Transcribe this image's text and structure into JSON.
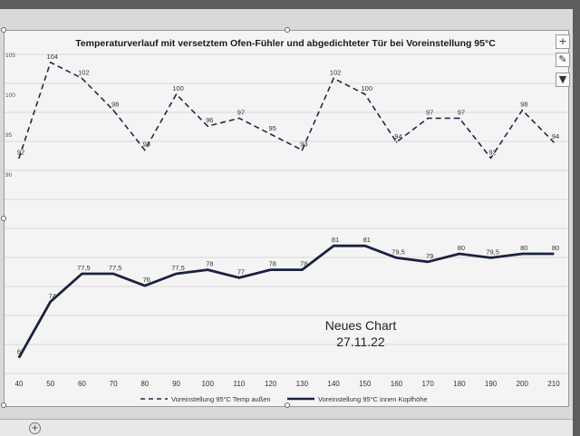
{
  "chart_data": {
    "type": "line",
    "title": "Temperaturverlauf mit versetztem Ofen-Fühler und abgedichteter Tür bei Voreinstellung 95°C",
    "x": [
      40,
      50,
      60,
      70,
      80,
      90,
      100,
      110,
      120,
      130,
      140,
      150,
      160,
      170,
      180,
      190,
      200,
      210
    ],
    "xlim": [
      40,
      210
    ],
    "ylim": [
      65,
      105
    ],
    "y_tick_labels": [
      "105",
      "100",
      "95",
      "90"
    ],
    "x_tick_labels": [
      "40",
      "50",
      "60",
      "70",
      "80",
      "90",
      "100",
      "110",
      "120",
      "130",
      "140",
      "150",
      "160",
      "170",
      "180",
      "190",
      "200",
      "210"
    ],
    "grid": true,
    "legend_position": "bottom",
    "series": [
      {
        "name": "Voreinstellung 95°C Temp außen",
        "color": "#1f2a4a",
        "style": "dashed",
        "x": [
          40,
          50,
          60,
          70,
          80,
          90,
          100,
          110,
          120,
          130,
          140,
          150,
          160,
          170,
          180,
          190,
          200,
          210
        ],
        "values": [
          92,
          104,
          102,
          98,
          93,
          100,
          96,
          97,
          95,
          93,
          102,
          100,
          94,
          97,
          97,
          92,
          98,
          94
        ],
        "labels": [
          "92",
          "104",
          "102",
          "98",
          "93",
          "100",
          "96",
          "97",
          "95",
          "93",
          "102",
          "100",
          "94",
          "97",
          "97",
          "92",
          "98",
          "94"
        ],
        "label_shown": [
          true,
          true,
          true,
          true,
          true,
          true,
          true,
          true,
          true,
          true,
          true,
          true,
          true,
          true,
          true,
          true,
          true,
          true
        ]
      },
      {
        "name": "Voreinstellung 95°C innen Kopfhöhe",
        "color": "#1a2240",
        "style": "solid",
        "x": [
          40,
          50,
          60,
          70,
          80,
          90,
          100,
          110,
          120,
          130,
          140,
          150,
          160,
          170,
          180,
          190,
          200,
          210
        ],
        "values": [
          67,
          74,
          77.5,
          77.5,
          76,
          77.5,
          78,
          77,
          78,
          78,
          81,
          81,
          79.5,
          79,
          80,
          79.5,
          80,
          80
        ],
        "labels": [
          "67",
          "74",
          "77,5",
          "77,5",
          "76",
          "77,5",
          "78",
          "77",
          "78",
          "78",
          "81",
          "81",
          "79,5",
          "79",
          "80",
          "79,5",
          "80",
          "80"
        ],
        "label_shown": [
          true,
          true,
          true,
          true,
          true,
          true,
          true,
          true,
          true,
          true,
          true,
          true,
          true,
          true,
          true,
          true,
          true,
          true
        ]
      }
    ]
  },
  "annotation": {
    "line1": "Neues Chart",
    "line2": "27.11.22"
  },
  "toolbar": {
    "add_label": "+",
    "style_label": "✎",
    "filter_label": "▼"
  },
  "sheet_bar": {
    "add_sheet_label": "+"
  }
}
